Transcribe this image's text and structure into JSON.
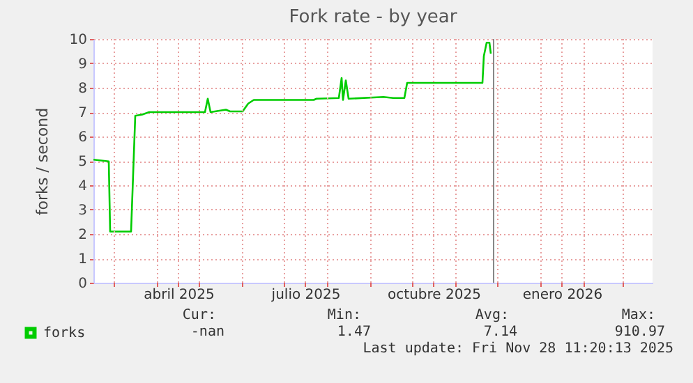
{
  "chart_data": {
    "type": "line",
    "title": "Fork rate - by year",
    "ylabel": "forks / second",
    "x": [
      "2025-02-14",
      "2025-02-25",
      "2025-02-26",
      "2025-03-13",
      "2025-03-16",
      "2025-03-21",
      "2025-03-26",
      "2025-05-05",
      "2025-05-07",
      "2025-05-09",
      "2025-05-20",
      "2025-05-23",
      "2025-06-01",
      "2025-06-05",
      "2025-06-09",
      "2025-07-22",
      "2025-07-24",
      "2025-08-09",
      "2025-08-11",
      "2025-08-12",
      "2025-08-14",
      "2025-08-16",
      "2025-09-10",
      "2025-09-17",
      "2025-09-25",
      "2025-09-27",
      "2025-11-20",
      "2025-11-21",
      "2025-11-23",
      "2025-11-25",
      "2025-11-26"
    ],
    "series": [
      {
        "name": "forks",
        "color": "#00cc00",
        "values": [
          5.05,
          4.98,
          2.1,
          2.1,
          6.85,
          6.9,
          7.0,
          7.0,
          7.55,
          7.0,
          7.1,
          7.03,
          7.03,
          7.35,
          7.5,
          7.5,
          7.55,
          7.58,
          8.4,
          7.5,
          8.3,
          7.55,
          7.62,
          7.58,
          7.58,
          8.2,
          8.2,
          9.3,
          9.85,
          9.85,
          9.4
        ]
      }
    ],
    "xlim": [
      "2025-02-14",
      "2026-03-22"
    ],
    "xticks": [
      {
        "value": "2025-03-01",
        "label": null
      },
      {
        "value": "2025-04-01",
        "label": null
      },
      {
        "value": "2025-04-16",
        "label": "abril 2025"
      },
      {
        "value": "2025-05-01",
        "label": null
      },
      {
        "value": "2025-06-01",
        "label": null
      },
      {
        "value": "2025-07-01",
        "label": null
      },
      {
        "value": "2025-07-16",
        "label": "julio 2025"
      },
      {
        "value": "2025-08-01",
        "label": null
      },
      {
        "value": "2025-09-01",
        "label": null
      },
      {
        "value": "2025-10-01",
        "label": null
      },
      {
        "value": "2025-10-16",
        "label": "octubre 2025"
      },
      {
        "value": "2025-11-01",
        "label": null
      },
      {
        "value": "2025-12-01",
        "label": null
      },
      {
        "value": "2026-01-01",
        "label": null
      },
      {
        "value": "2026-01-16",
        "label": "enero 2026"
      },
      {
        "value": "2026-02-01",
        "label": null
      },
      {
        "value": "2026-03-01",
        "label": null
      }
    ],
    "ylim": [
      0,
      10
    ],
    "yticks": [
      0,
      1,
      2,
      3,
      4,
      5,
      6,
      7,
      8,
      9,
      10
    ],
    "ref_lines": [
      {
        "axis": "x",
        "value": "2025-11-28",
        "color": "#888888"
      }
    ],
    "grid": true,
    "legend": "bottom left",
    "marker": "none",
    "line_style": "solid",
    "annotations": [
      "Cur:",
      "Min:",
      "Avg:",
      "Max:",
      "-nan",
      "1.47",
      "7.14",
      "910.97",
      "Last update: Fri Nov 28 11:20:13 2025"
    ]
  }
}
